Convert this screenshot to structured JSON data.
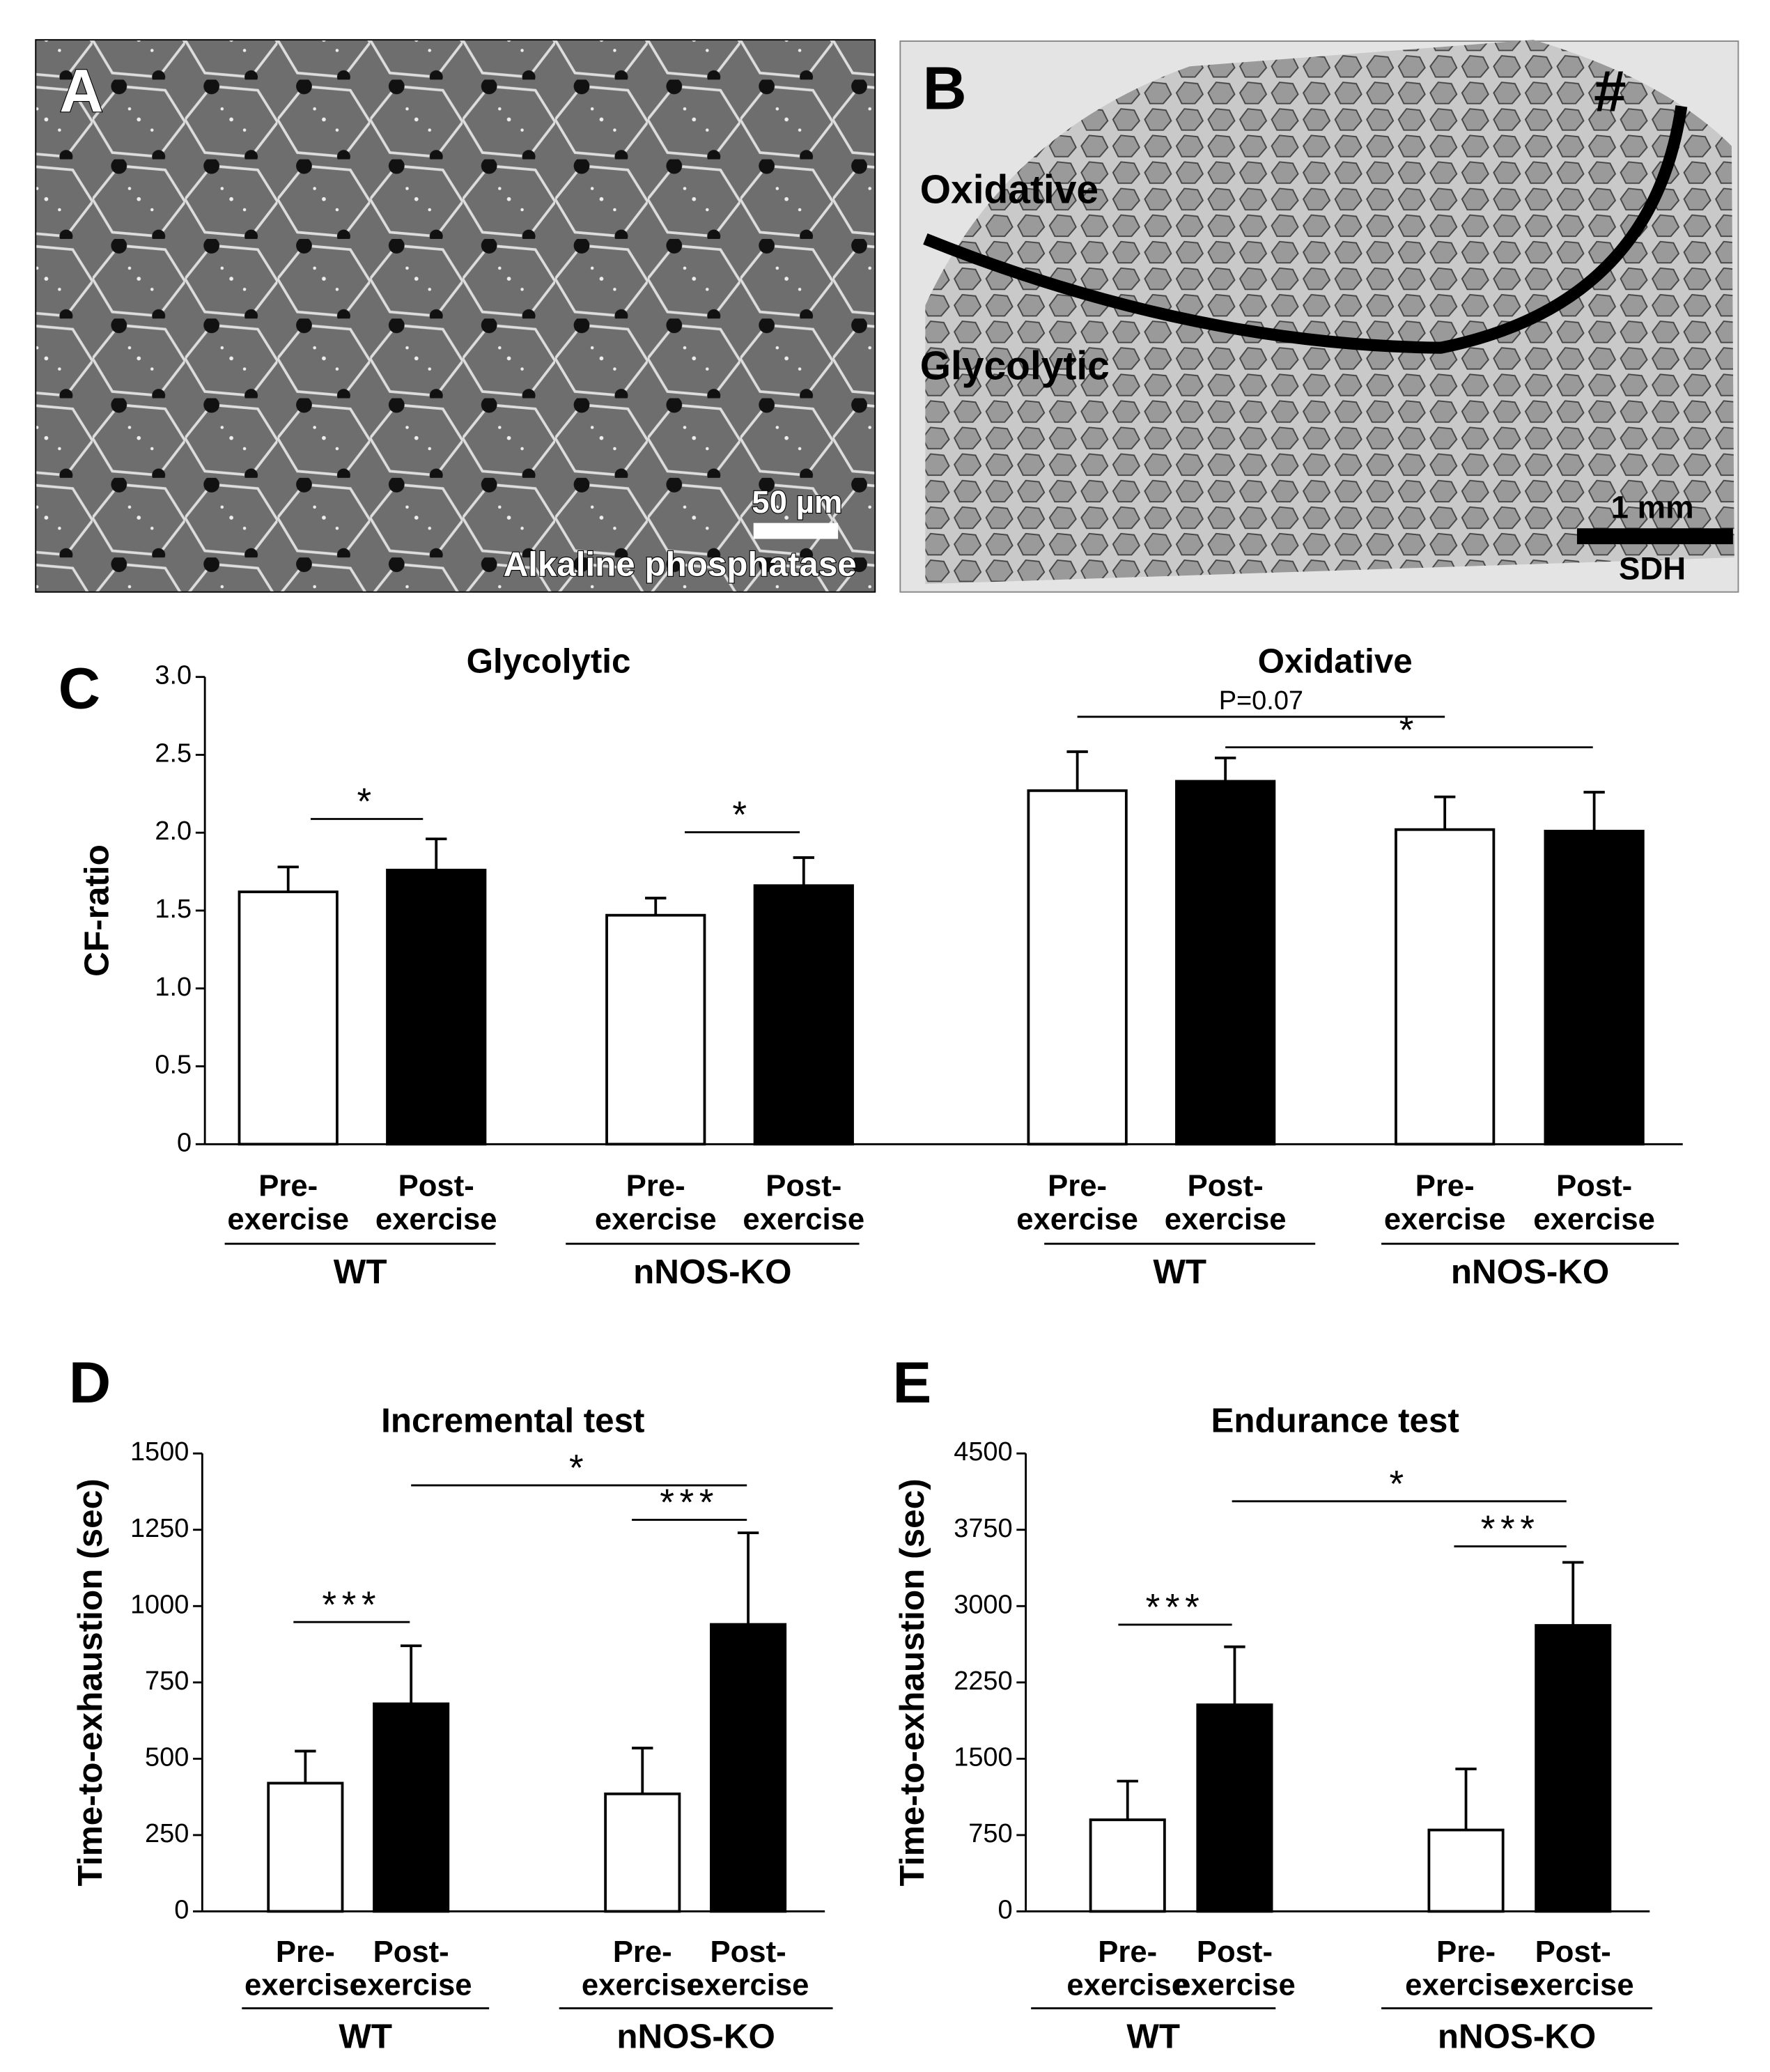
{
  "images": [
    {
      "panel": "A",
      "caption": "Alkaline phosphatase",
      "scale": "50 µm"
    },
    {
      "panel": "B",
      "caption": "SDH",
      "scale": "1 mm",
      "marker": "#",
      "regions": [
        "Oxidative",
        "Glycolytic"
      ]
    }
  ],
  "chart_data": [
    {
      "type": "bar",
      "panel": "C",
      "sections": [
        "Glycolytic",
        "Oxidative"
      ],
      "y_label": "CF-ratio",
      "categories": [
        [
          "Pre-",
          "exercise"
        ],
        [
          "Post-",
          "exercise"
        ],
        [
          "Pre-",
          "exercise"
        ],
        [
          "Post-",
          "exercise"
        ],
        [
          "Pre-",
          "exercise"
        ],
        [
          "Post-",
          "exercise"
        ],
        [
          "Pre-",
          "exercise"
        ],
        [
          "Post-",
          "exercise"
        ]
      ],
      "group_labels": [
        "WT",
        "nNOS-KO",
        "WT",
        "nNOS-KO"
      ],
      "values": [
        1.62,
        1.76,
        1.47,
        1.66,
        2.27,
        2.33,
        2.02,
        2.01
      ],
      "errors": [
        0.16,
        0.2,
        0.11,
        0.18,
        0.25,
        0.15,
        0.21,
        0.25
      ],
      "colors": [
        "#ffffff",
        "#000000",
        "#ffffff",
        "#000000",
        "#ffffff",
        "#000000",
        "#ffffff",
        "#000000"
      ],
      "ylim": [
        0,
        3
      ],
      "yticks": [
        0,
        0.5,
        {
          "value": 1,
          "label": "1.0"
        },
        1.5,
        {
          "value": 2,
          "label": "2.0"
        },
        2.5,
        {
          "value": 3,
          "label": "3.0"
        }
      ],
      "annotations": [
        "*",
        "*",
        "P=0.07",
        "*"
      ]
    },
    {
      "type": "bar",
      "panel": "D",
      "title": "Incremental test",
      "y_label": "Time-to-exhaustion (sec)",
      "categories": [
        [
          "Pre-",
          "exercise"
        ],
        [
          "Post-",
          "exercise"
        ],
        [
          "Pre-",
          "exercise"
        ],
        [
          "Post-",
          "exercise"
        ]
      ],
      "group_labels": [
        "WT",
        "nNOS-KO"
      ],
      "values": [
        420,
        680,
        385,
        940
      ],
      "errors": [
        105,
        190,
        150,
        300
      ],
      "colors": [
        "#ffffff",
        "#000000",
        "#ffffff",
        "#000000"
      ],
      "ylim": [
        0,
        1500
      ],
      "yticks": [
        0,
        250,
        500,
        750,
        1000,
        1250,
        1500
      ],
      "annotations": [
        "***",
        "*",
        "***"
      ]
    },
    {
      "type": "bar",
      "panel": "E",
      "title": "Endurance test",
      "y_label": "Time-to-exhaustion (sec)",
      "categories": [
        [
          "Pre-",
          "exercise"
        ],
        [
          "Post-",
          "exercise"
        ],
        [
          "Pre-",
          "exercise"
        ],
        [
          "Post-",
          "exercise"
        ]
      ],
      "group_labels": [
        "WT",
        "nNOS-KO"
      ],
      "values": [
        900,
        2030,
        800,
        2810
      ],
      "errors": [
        380,
        570,
        600,
        620
      ],
      "colors": [
        "#ffffff",
        "#000000",
        "#ffffff",
        "#000000"
      ],
      "ylim": [
        0,
        4500
      ],
      "yticks": [
        0,
        750,
        1500,
        2250,
        3000,
        3750,
        4500
      ],
      "annotations": [
        "***",
        "*",
        "***"
      ]
    }
  ]
}
